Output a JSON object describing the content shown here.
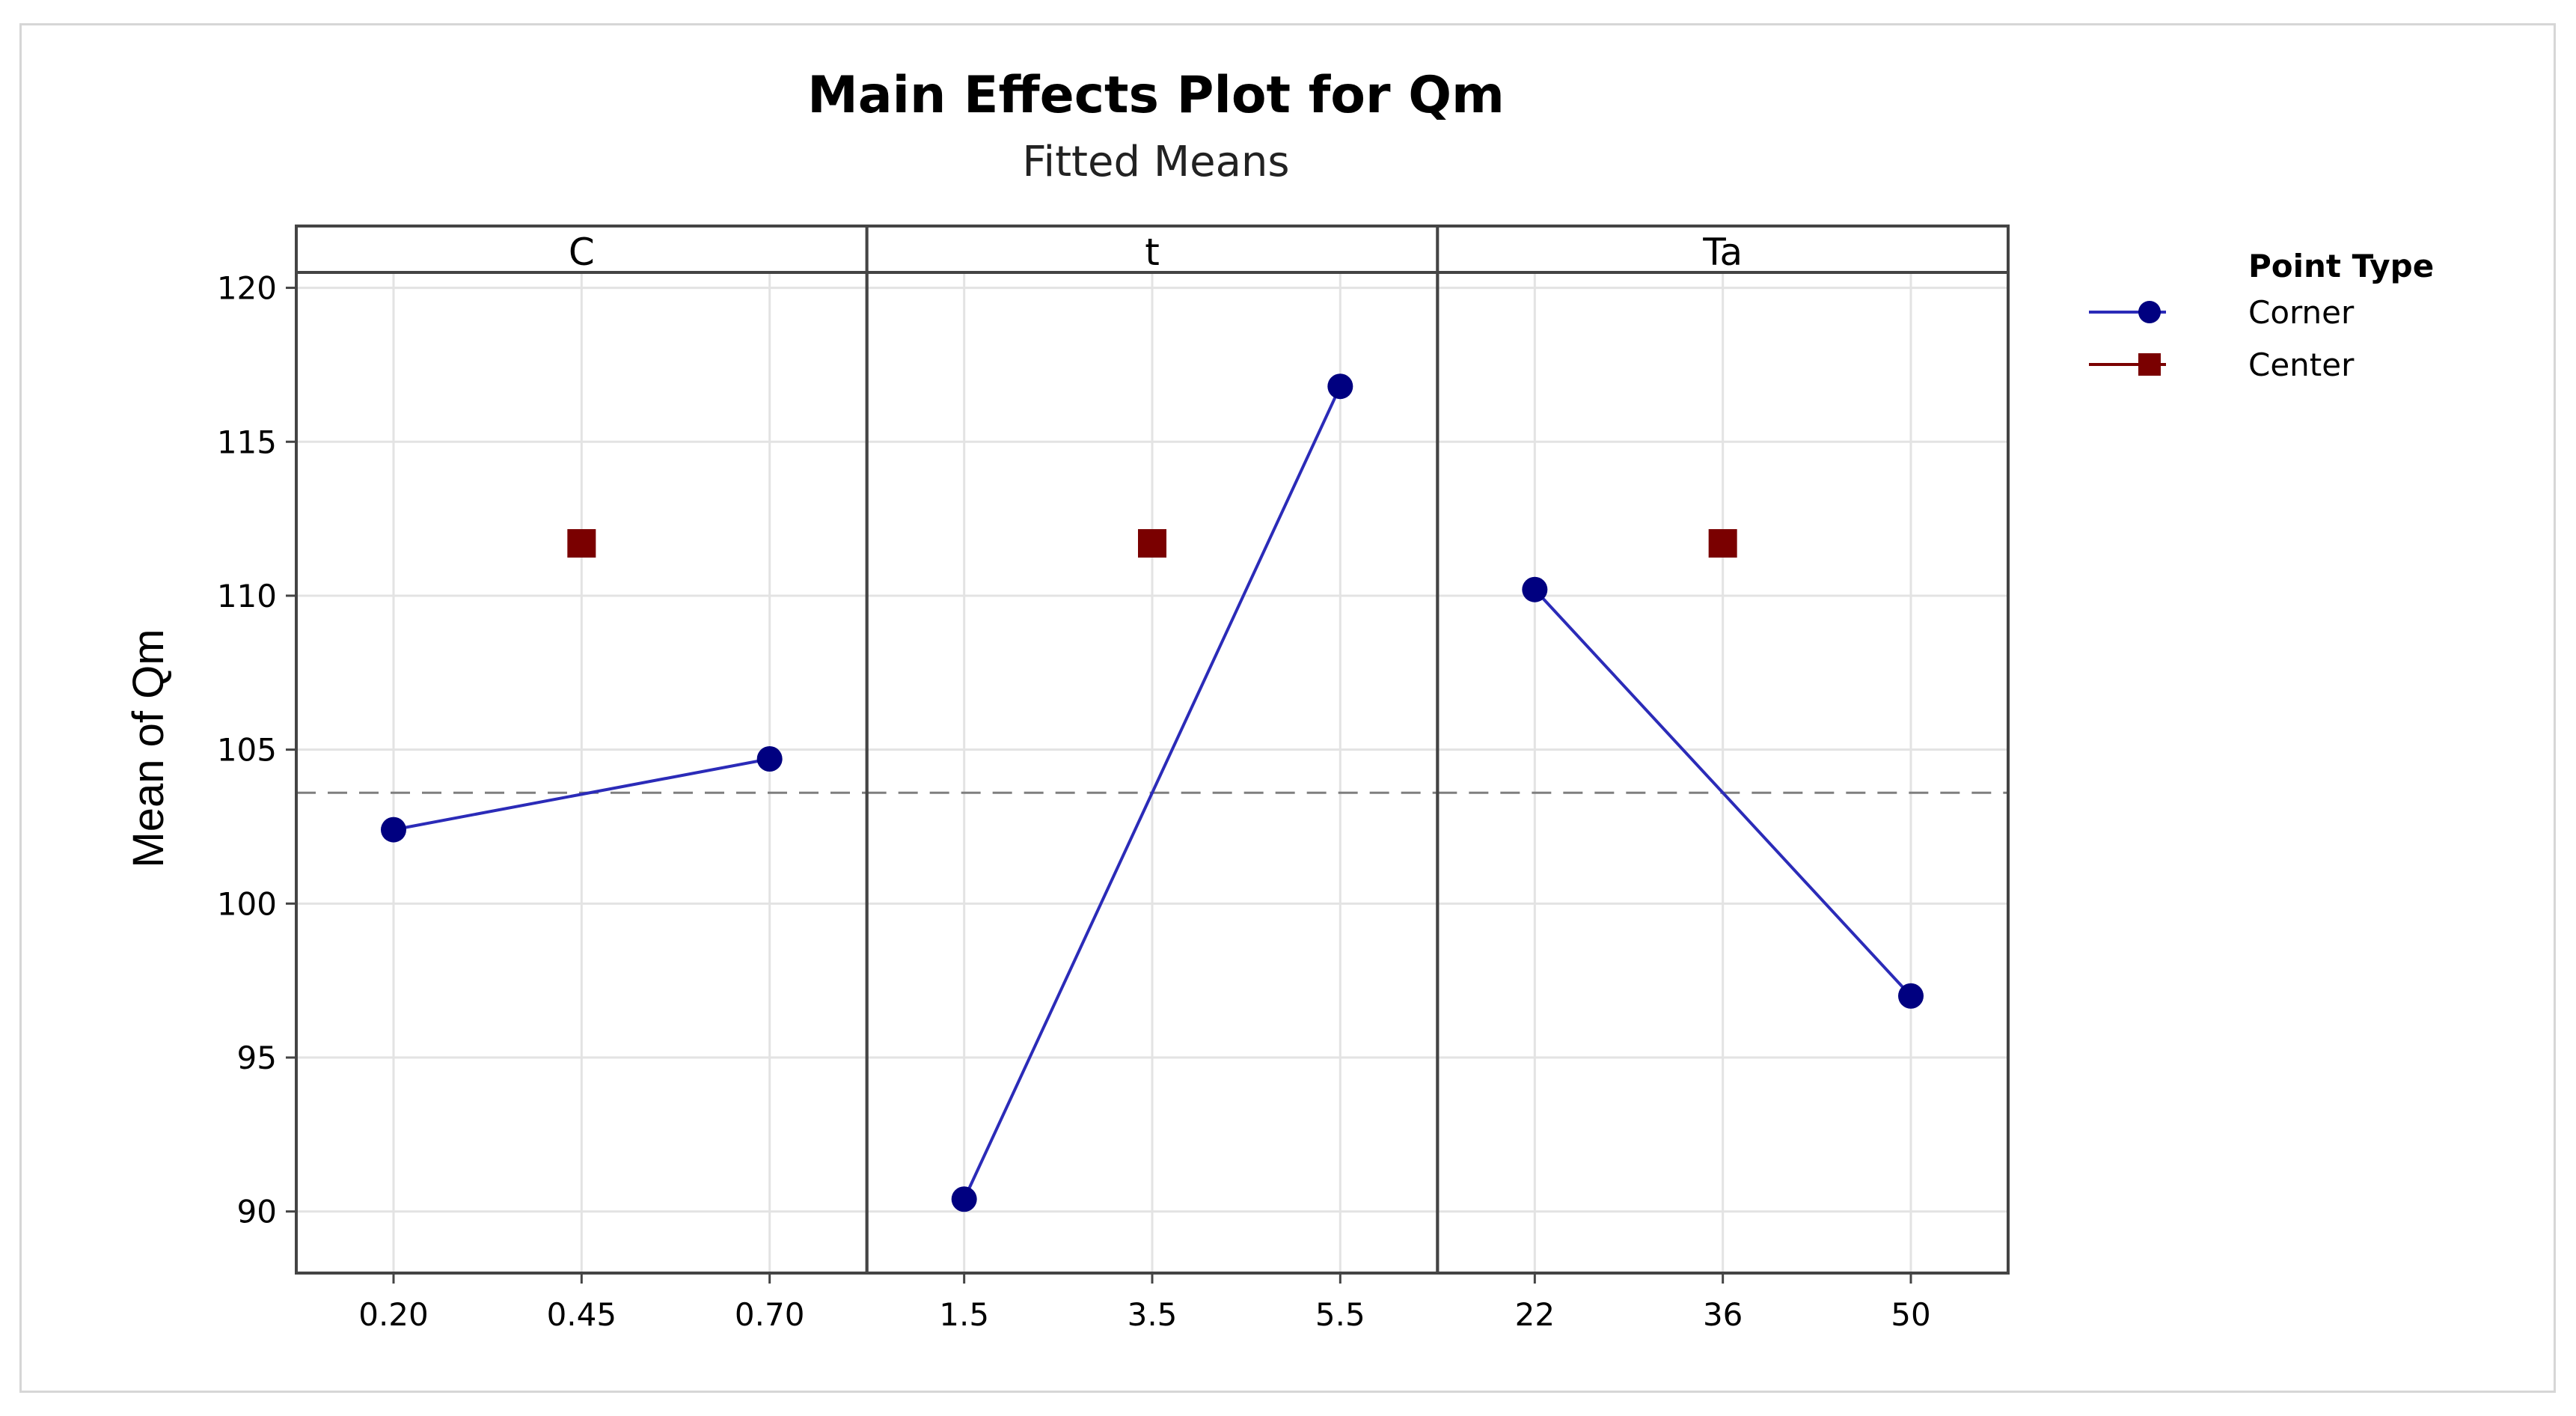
{
  "chart_data": {
    "type": "line",
    "title": "Main Effects Plot for Qm",
    "subtitle": "Fitted Means",
    "ylabel": "Mean of Qm",
    "ylim": [
      88,
      120.5
    ],
    "yticks": [
      90,
      95,
      100,
      105,
      110,
      115,
      120
    ],
    "grid": true,
    "overall_mean": 103.6,
    "legend": {
      "title": "Point Type",
      "placement": "right",
      "entries": [
        {
          "name": "Corner",
          "color": "#000080",
          "marker": "circle"
        },
        {
          "name": "Center",
          "color": "#7a0000",
          "marker": "square"
        }
      ]
    },
    "panels": [
      {
        "factor": "C",
        "x": [
          "0.20",
          "0.45",
          "0.70"
        ],
        "corner": [
          {
            "x": "0.20",
            "y": 102.4
          },
          {
            "x": "0.70",
            "y": 104.7
          }
        ],
        "center": {
          "x": "0.45",
          "y": 111.7
        }
      },
      {
        "factor": "t",
        "x": [
          "1.5",
          "3.5",
          "5.5"
        ],
        "corner": [
          {
            "x": "1.5",
            "y": 90.4
          },
          {
            "x": "5.5",
            "y": 116.8
          }
        ],
        "center": {
          "x": "3.5",
          "y": 111.7
        }
      },
      {
        "factor": "Ta",
        "x": [
          "22",
          "36",
          "50"
        ],
        "corner": [
          {
            "x": "22",
            "y": 110.2
          },
          {
            "x": "50",
            "y": 97.0
          }
        ],
        "center": {
          "x": "36",
          "y": 111.7
        }
      }
    ],
    "colors": {
      "corner": "#000080",
      "corner_line": "#2b2bb8",
      "center": "#7a0000",
      "grid": "#e3e3e3",
      "reference": "#7f7f7f",
      "axis": "#444444"
    }
  }
}
